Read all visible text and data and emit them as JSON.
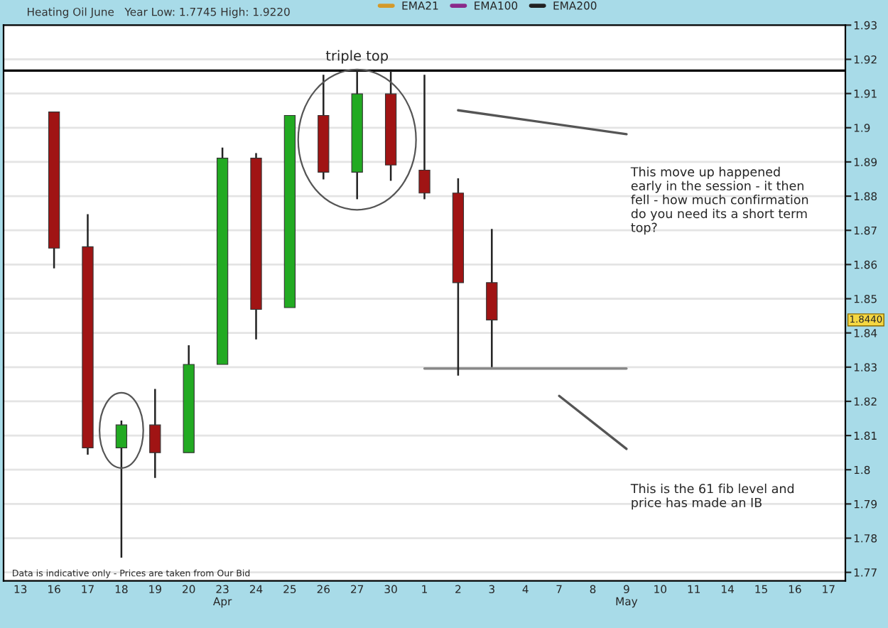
{
  "chart_data": {
    "type": "candlestick",
    "subtitle": "Heating Oil June   Year Low: 1.7745 High: 1.9220",
    "categories": [
      "13",
      "16",
      "17",
      "18",
      "19",
      "20",
      "23\nApr",
      "24",
      "25",
      "26",
      "27",
      "30",
      "1",
      "2",
      "3",
      "4",
      "7",
      "8",
      "9\nMay",
      "10",
      "11",
      "14",
      "15",
      "16",
      "17"
    ],
    "ohlc": [
      null,
      [
        1.9046,
        1.9046,
        1.8589,
        1.8648
      ],
      [
        1.8652,
        1.8747,
        1.8044,
        1.8064
      ],
      [
        1.8064,
        1.8144,
        1.7743,
        1.8131
      ],
      [
        1.8131,
        1.8236,
        1.7976,
        1.805
      ],
      [
        1.805,
        1.8364,
        1.805,
        1.8308
      ],
      [
        1.8308,
        1.8942,
        1.8308,
        1.8911
      ],
      [
        1.8911,
        1.8926,
        1.8381,
        1.8469
      ],
      [
        1.8474,
        1.9036,
        1.8474,
        1.9036
      ],
      [
        1.9036,
        1.9155,
        1.8849,
        1.887
      ],
      [
        1.887,
        1.9167,
        1.8791,
        1.9099
      ],
      [
        1.9099,
        1.9167,
        1.8845,
        1.8891
      ],
      [
        1.8876,
        1.9155,
        1.8791,
        1.8809
      ],
      [
        1.8809,
        1.8852,
        1.8275,
        1.8547
      ],
      [
        1.8547,
        1.8704,
        1.83,
        1.8438
      ],
      null,
      null,
      null,
      null,
      null,
      null,
      null,
      null,
      null,
      null
    ],
    "colors": [
      null,
      "#a01414",
      "#a01414",
      "#22aa22",
      "#a01414",
      "#22aa22",
      "#22aa22",
      "#a01414",
      "#22aa22",
      "#a01414",
      "#22aa22",
      "#a01414",
      "#a01414",
      "#a01414",
      "#a01414",
      null,
      null,
      null,
      null,
      null,
      null,
      null,
      null,
      null,
      null
    ],
    "series": [
      {
        "type": "line",
        "color": "#888888",
        "values": [
          null,
          null,
          null,
          null,
          null,
          null,
          null,
          null,
          null,
          null,
          null,
          null,
          1.8296,
          1.8296,
          1.8296,
          1.8296,
          1.8296,
          1.8296,
          1.8296,
          null,
          null,
          null,
          null,
          null,
          null
        ]
      },
      {
        "type": "line",
        "color": "#555555",
        "values": [
          null,
          null,
          null,
          null,
          null,
          null,
          null,
          null,
          null,
          null,
          null,
          null,
          null,
          1.9051,
          null,
          null,
          null,
          null,
          1.8981,
          null,
          null,
          null,
          null,
          null,
          null
        ]
      },
      {
        "type": "line",
        "color": "#555555",
        "values": [
          null,
          null,
          null,
          null,
          null,
          null,
          null,
          null,
          null,
          null,
          null,
          null,
          null,
          null,
          null,
          null,
          1.8216,
          null,
          1.8061,
          null,
          null,
          null,
          null,
          null,
          null
        ]
      },
      {
        "type": "line",
        "name": "EMA21",
        "color": "#d49a2a",
        "values": [
          null,
          null,
          null,
          null,
          null,
          null,
          null,
          null,
          null,
          null,
          null,
          null,
          null,
          null,
          null,
          null,
          null,
          null,
          null,
          null,
          null,
          null,
          null,
          null,
          null
        ]
      },
      {
        "type": "line",
        "name": "EMA100",
        "color": "#8a2a8a",
        "values": [
          null,
          null,
          null,
          null,
          null,
          null,
          null,
          null,
          null,
          null,
          null,
          null,
          null,
          null,
          null,
          null,
          null,
          null,
          null,
          null,
          null,
          null,
          null,
          null,
          null
        ]
      },
      {
        "type": "line",
        "name": "EMA200",
        "color": "#222222",
        "values": [
          null,
          null,
          null,
          null,
          null,
          null,
          null,
          null,
          null,
          null,
          null,
          null,
          null,
          null,
          null,
          null,
          null,
          null,
          null,
          null,
          null,
          null,
          null,
          null,
          null
        ]
      }
    ],
    "ylim": [
      1.7675,
      1.93
    ],
    "yticks": [
      1.77,
      1.78,
      1.79,
      1.8,
      1.81,
      1.82,
      1.83,
      1.84,
      1.85,
      1.86,
      1.87,
      1.88,
      1.89,
      1.9,
      1.91,
      1.92,
      1.93
    ],
    "grid": "y",
    "legend": "top",
    "ref_lines": [
      {
        "axis": "y",
        "value": 1.9167,
        "color": "#000000"
      }
    ],
    "annotations": [
      "triple top",
      "This move up happened\nearly in the session - it then\nfell - how much confirmation\ndo you need its a short term\ntop?",
      "This is the 61 fib level and\nprice has made an IB",
      "Data is indicative only - Prices are taken from Our Bid",
      "1.8440"
    ]
  }
}
